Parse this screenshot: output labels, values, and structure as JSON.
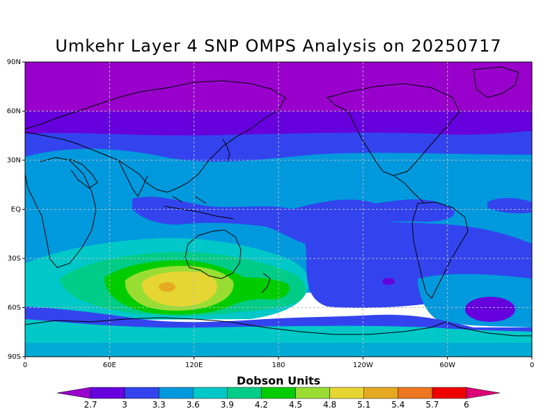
{
  "title": "Umkehr Layer 4 SNP OMPS Analysis on 20250717",
  "map": {
    "lat_range": [
      -90,
      90
    ],
    "lon_range": [
      0,
      360
    ],
    "y_ticks": [
      {
        "lat": 90,
        "label": "90N"
      },
      {
        "lat": 60,
        "label": "60N"
      },
      {
        "lat": 30,
        "label": "30N"
      },
      {
        "lat": 0,
        "label": "EQ"
      },
      {
        "lat": -30,
        "label": "30S"
      },
      {
        "lat": -60,
        "label": "60S"
      },
      {
        "lat": -90,
        "label": "90S"
      }
    ],
    "x_ticks": [
      {
        "lon": 0,
        "label": "0"
      },
      {
        "lon": 60,
        "label": "60E"
      },
      {
        "lon": 120,
        "label": "120E"
      },
      {
        "lon": 180,
        "label": "180"
      },
      {
        "lon": 240,
        "label": "120W"
      },
      {
        "lon": 300,
        "label": "60W"
      },
      {
        "lon": 360,
        "label": "0"
      }
    ],
    "grid": true
  },
  "colorbar": {
    "title": "Dobson Units",
    "labels": [
      "2.7",
      "3",
      "3.3",
      "3.6",
      "3.9",
      "4.2",
      "4.5",
      "4.8",
      "5.1",
      "5.4",
      "5.7",
      "6"
    ],
    "colors": [
      "#9900cc",
      "#6600dd",
      "#3344ee",
      "#0099dd",
      "#00c8c8",
      "#00cc88",
      "#00cc00",
      "#99dd33",
      "#e6d633",
      "#e6aa22",
      "#ee7722",
      "#ee0000",
      "#dd0077"
    ]
  },
  "chart_data": {
    "type": "heatmap",
    "title": "Umkehr Layer 4 SNP OMPS Analysis on 20250717",
    "units": "Dobson Units",
    "levels": [
      2.7,
      3.0,
      3.3,
      3.6,
      3.9,
      4.2,
      4.5,
      4.8,
      5.1,
      5.4,
      5.7,
      6.0
    ],
    "features": [
      {
        "region": "90N-60N band",
        "value_range": [
          2.5,
          2.7
        ]
      },
      {
        "region": "60N-45N band",
        "value_range": [
          2.7,
          3.0
        ]
      },
      {
        "region": "45N-30N band",
        "value_range": [
          3.0,
          3.3
        ]
      },
      {
        "region": "tropics 30N-20S",
        "value_range": [
          3.3,
          3.6
        ]
      },
      {
        "region": "South Pacific 20S-60S",
        "value_range": [
          3.0,
          3.3
        ]
      },
      {
        "region": "Indian Ocean / Australia maximum 30S-60S, 60E-175E",
        "value_range": [
          4.5,
          5.4
        ]
      },
      {
        "region": "South Atlantic minimum near 60S, 30W",
        "value_range": [
          2.7,
          3.0
        ]
      },
      {
        "region": "Antarctic 70S-90S",
        "value_range": [
          3.6,
          3.9
        ]
      }
    ]
  }
}
